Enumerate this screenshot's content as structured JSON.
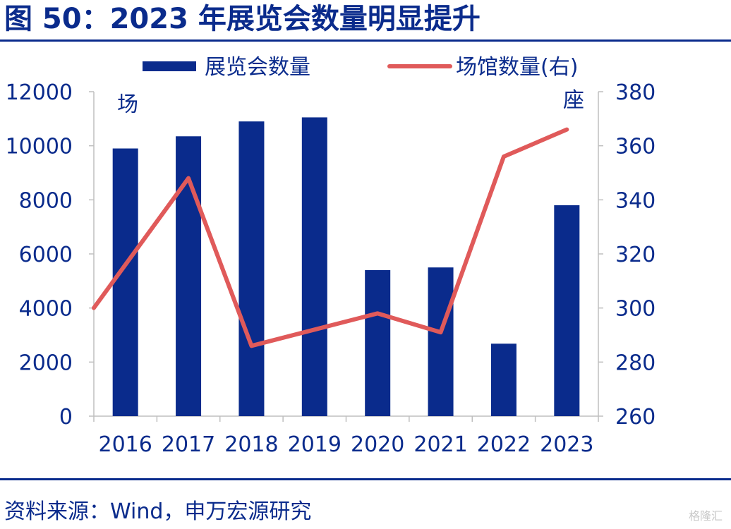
{
  "title": "图 50：2023 年展览会数量明显提升",
  "source": "资料来源：Wind，申万宏源研究",
  "watermark": "格隆汇",
  "chart_data": {
    "type": "bar+line",
    "categories": [
      "2016",
      "2017",
      "2018",
      "2019",
      "2020",
      "2021",
      "2022",
      "2023"
    ],
    "series": [
      {
        "name": "展览会数量",
        "type": "bar",
        "axis": "left",
        "color": "#0a2b8c",
        "values": [
          9900,
          10350,
          10900,
          11050,
          5400,
          5500,
          2680,
          7800
        ]
      },
      {
        "name": "场馆数量(右)",
        "type": "line",
        "axis": "right",
        "color": "#e05a5a",
        "values": [
          300,
          348,
          286,
          292,
          298,
          291,
          356,
          366
        ]
      }
    ],
    "y_left": {
      "min": 0,
      "max": 12000,
      "ticks": [
        "0",
        "2000",
        "4000",
        "6000",
        "8000",
        "10000",
        "12000"
      ],
      "unit": "场"
    },
    "y_right": {
      "min": 260,
      "max": 380,
      "ticks": [
        "260",
        "280",
        "300",
        "320",
        "340",
        "360",
        "380"
      ],
      "unit": "座"
    },
    "legend_position": "top",
    "grid": false
  }
}
